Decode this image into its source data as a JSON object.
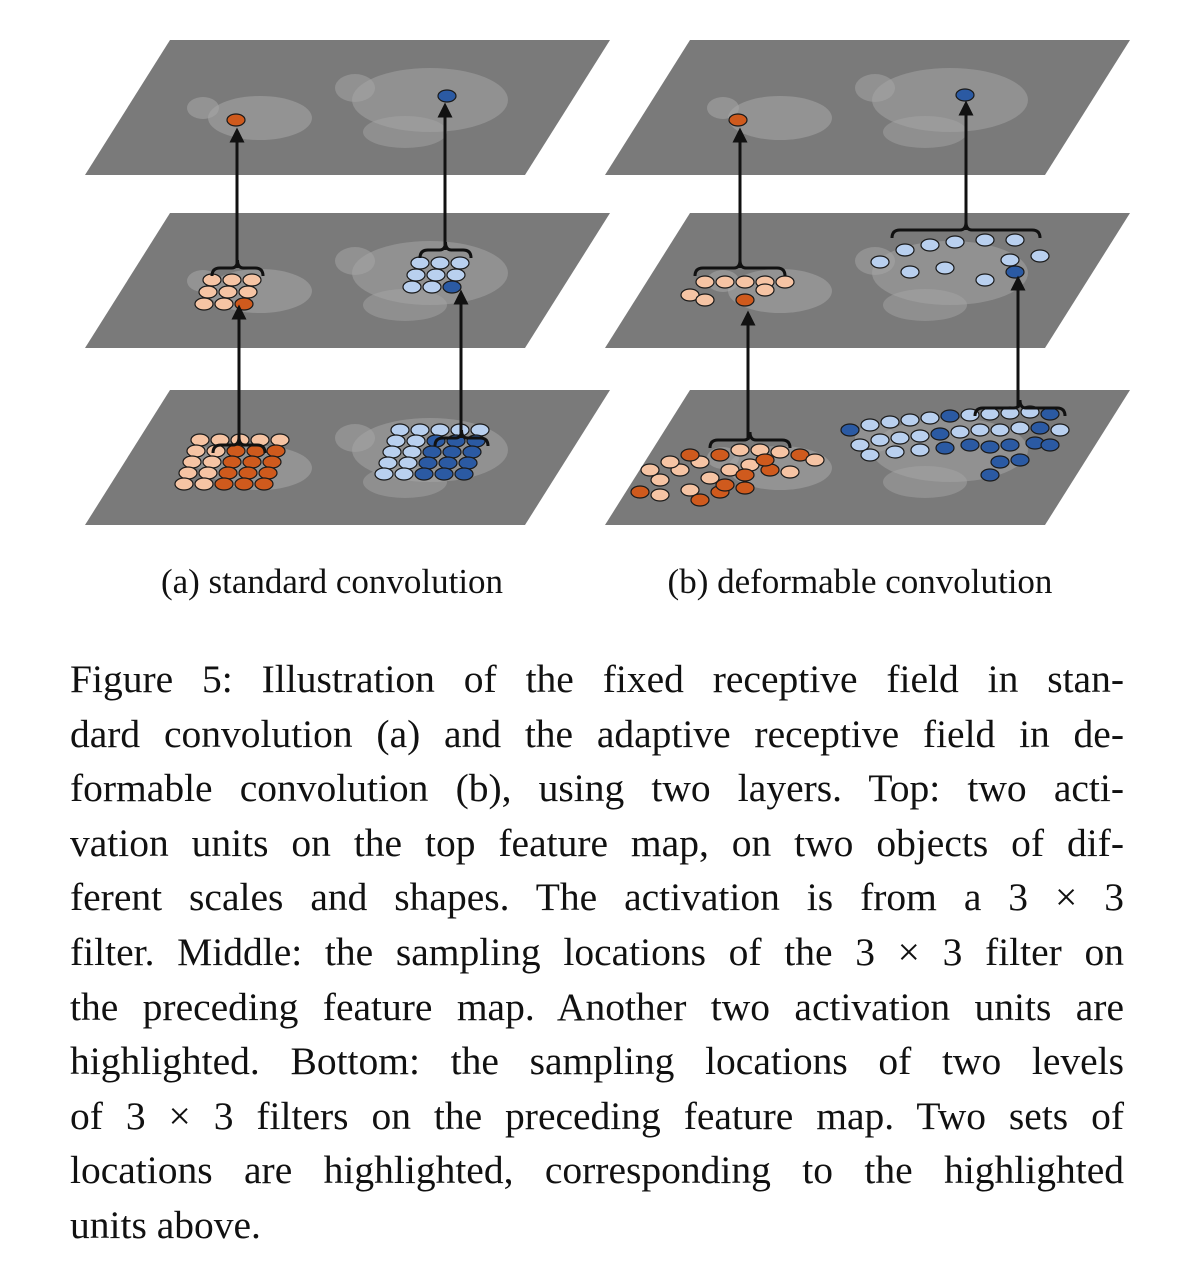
{
  "subcaptions": {
    "a": "(a) standard convolution",
    "b": "(b) deformable convolution"
  },
  "caption_lines": [
    "Figure 5: Illustration of the fixed receptive field in stan-",
    "dard convolution (a) and the adaptive receptive field in de-",
    "formable convolution (b), using two layers. Top: two acti-",
    "vation units on the top feature map, on two objects of dif-",
    "ferent scales and shapes.  The activation is from a 3 × 3",
    "filter. Middle: the sampling locations of the 3 × 3 filter on",
    "the preceding feature map. Another two activation units are",
    "highlighted.  Bottom: the sampling locations of two levels",
    "of 3 × 3 filters on the preceding feature map.  Two sets of",
    "locations are highlighted, corresponding to the highlighted",
    "units above."
  ],
  "colors": {
    "plane": "#7a7a7a",
    "sheep": "#a8a8a8",
    "orange_strong": "#cf5a1d",
    "orange_light": "#f6c4a4",
    "blue_strong": "#2b5aa3",
    "blue_light": "#b9d0ef",
    "outline": "#1a1a1a"
  }
}
